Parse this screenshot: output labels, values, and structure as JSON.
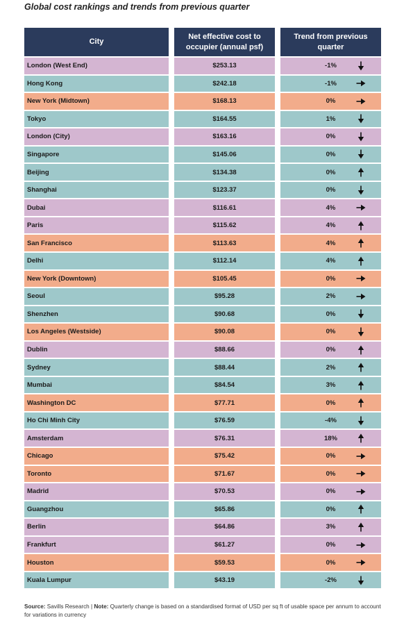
{
  "title": "Global cost rankings and trends from previous quarter",
  "headers": {
    "city": "City",
    "cost": "Net effective cost to occupier (annual psf)",
    "trend": "Trend from previous quarter"
  },
  "colors": {
    "header": "#2b3b5c",
    "purple": "#d4b5d2",
    "teal": "#9ec8ca",
    "orange": "#f2ac8b"
  },
  "chart_data": {
    "type": "table",
    "columns": [
      "City",
      "Net effective cost to occupier (annual psf)",
      "Trend from previous quarter"
    ],
    "rows": [
      {
        "city": "London (West End)",
        "cost": "$253.13",
        "change": "-1%",
        "trend": "down",
        "color": "purple"
      },
      {
        "city": "Hong Kong",
        "cost": "$242.18",
        "change": "-1%",
        "trend": "flat",
        "color": "teal"
      },
      {
        "city": "New York (Midtown)",
        "cost": "$168.13",
        "change": "0%",
        "trend": "flat",
        "color": "orange"
      },
      {
        "city": "Tokyo",
        "cost": "$164.55",
        "change": "1%",
        "trend": "down",
        "color": "teal"
      },
      {
        "city": "London (City)",
        "cost": "$163.16",
        "change": "0%",
        "trend": "down",
        "color": "purple"
      },
      {
        "city": "Singapore",
        "cost": "$145.06",
        "change": "0%",
        "trend": "down",
        "color": "teal"
      },
      {
        "city": "Beijing",
        "cost": "$134.38",
        "change": "0%",
        "trend": "up",
        "color": "teal"
      },
      {
        "city": "Shanghai",
        "cost": "$123.37",
        "change": "0%",
        "trend": "down",
        "color": "teal"
      },
      {
        "city": "Dubai",
        "cost": "$116.61",
        "change": "4%",
        "trend": "flat",
        "color": "purple"
      },
      {
        "city": "Paris",
        "cost": "$115.62",
        "change": "4%",
        "trend": "up",
        "color": "purple"
      },
      {
        "city": "San Francisco",
        "cost": "$113.63",
        "change": "4%",
        "trend": "up",
        "color": "orange"
      },
      {
        "city": "Delhi",
        "cost": "$112.14",
        "change": "4%",
        "trend": "up",
        "color": "teal"
      },
      {
        "city": "New York (Downtown)",
        "cost": "$105.45",
        "change": "0%",
        "trend": "flat",
        "color": "orange"
      },
      {
        "city": "Seoul",
        "cost": "$95.28",
        "change": "2%",
        "trend": "flat",
        "color": "teal"
      },
      {
        "city": "Shenzhen",
        "cost": "$90.68",
        "change": "0%",
        "trend": "down",
        "color": "teal"
      },
      {
        "city": "Los Angeles (Westside)",
        "cost": "$90.08",
        "change": "0%",
        "trend": "down",
        "color": "orange"
      },
      {
        "city": "Dublin",
        "cost": "$88.66",
        "change": "0%",
        "trend": "up",
        "color": "purple"
      },
      {
        "city": "Sydney",
        "cost": "$88.44",
        "change": "2%",
        "trend": "up",
        "color": "teal"
      },
      {
        "city": "Mumbai",
        "cost": "$84.54",
        "change": "3%",
        "trend": "up",
        "color": "teal"
      },
      {
        "city": "Washington DC",
        "cost": "$77.71",
        "change": "0%",
        "trend": "up",
        "color": "orange"
      },
      {
        "city": "Ho Chi Minh City",
        "cost": "$76.59",
        "change": "-4%",
        "trend": "down",
        "color": "teal"
      },
      {
        "city": "Amsterdam",
        "cost": "$76.31",
        "change": "18%",
        "trend": "up",
        "color": "purple"
      },
      {
        "city": "Chicago",
        "cost": "$75.42",
        "change": "0%",
        "trend": "flat",
        "color": "orange"
      },
      {
        "city": "Toronto",
        "cost": "$71.67",
        "change": "0%",
        "trend": "flat",
        "color": "orange"
      },
      {
        "city": "Madrid",
        "cost": "$70.53",
        "change": "0%",
        "trend": "flat",
        "color": "purple"
      },
      {
        "city": "Guangzhou",
        "cost": "$65.86",
        "change": "0%",
        "trend": "up",
        "color": "teal"
      },
      {
        "city": "Berlin",
        "cost": "$64.86",
        "change": "3%",
        "trend": "up",
        "color": "purple"
      },
      {
        "city": "Frankfurt",
        "cost": "$61.27",
        "change": "0%",
        "trend": "flat",
        "color": "purple"
      },
      {
        "city": "Houston",
        "cost": "$59.53",
        "change": "0%",
        "trend": "flat",
        "color": "orange"
      },
      {
        "city": "Kuala Lumpur",
        "cost": "$43.19",
        "change": "-2%",
        "trend": "down",
        "color": "teal"
      }
    ]
  },
  "footer": {
    "source_label": "Source:",
    "source_text": "Savills Research",
    "separator": "|",
    "note_label": "Note:",
    "note_text": "Quarterly change is based on a standardised format of USD per sq ft of usable space per annum to account for variations in currency"
  }
}
